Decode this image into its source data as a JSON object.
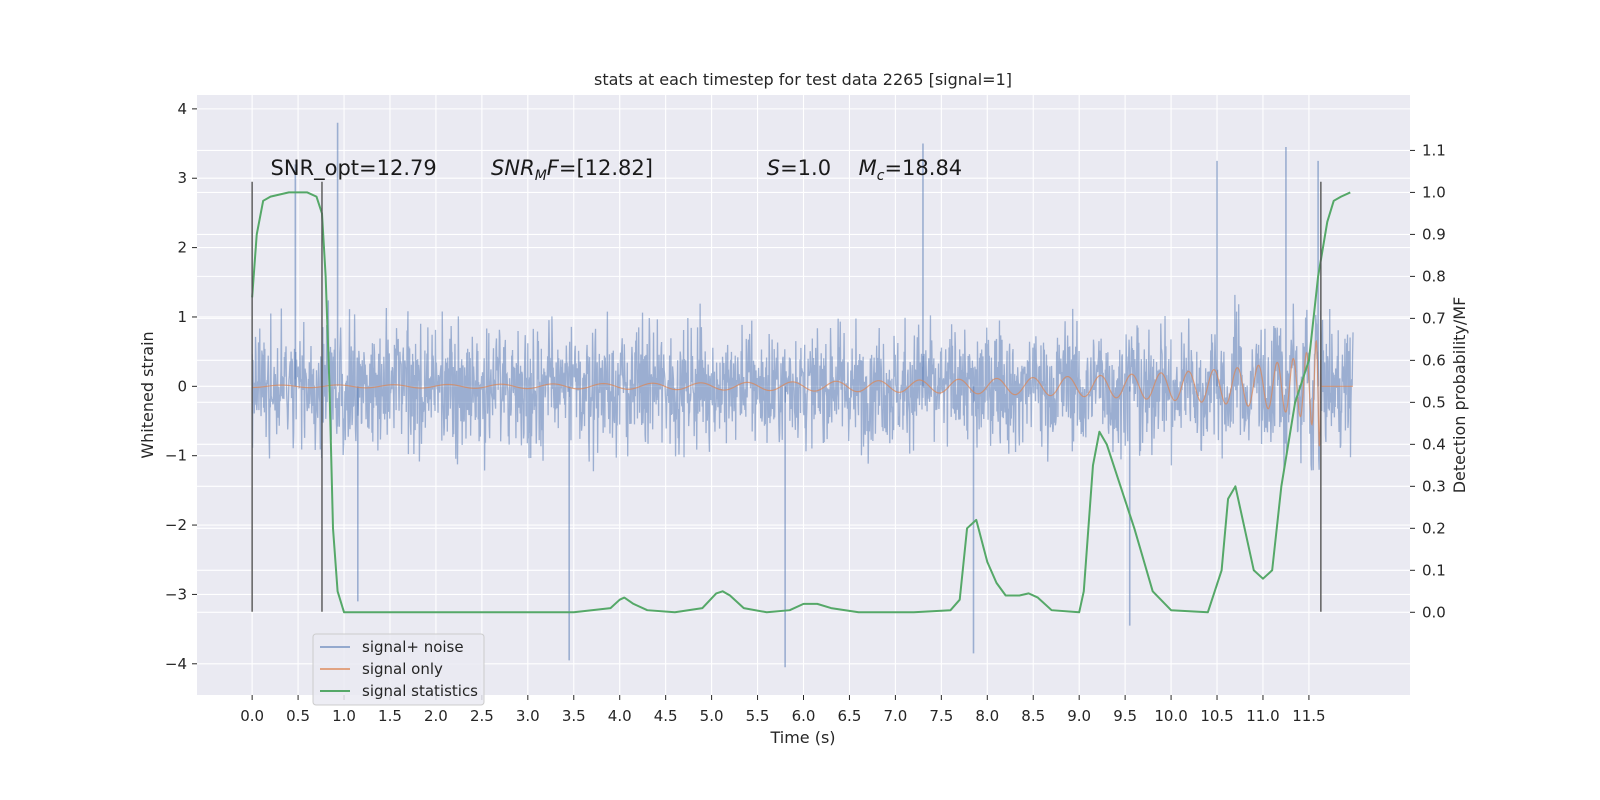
{
  "chart_data": {
    "type": "line",
    "title": "stats at each timestep for test data 2265 [signal=1]",
    "xlabel": "Time (s)",
    "ylabel": "Whitened strain",
    "y2label": "Detection probability/MF",
    "xlim": [
      -0.6,
      12.6
    ],
    "ylim": [
      -4.45,
      4.2
    ],
    "y2lim": [
      -0.197,
      1.232
    ],
    "xticks": [
      0.0,
      0.5,
      1.0,
      1.5,
      2.0,
      2.5,
      3.0,
      3.5,
      4.0,
      4.5,
      5.0,
      5.5,
      6.0,
      6.5,
      7.0,
      7.5,
      8.0,
      8.5,
      9.0,
      9.5,
      10.0,
      10.5,
      11.0,
      11.5
    ],
    "xtick_labels": [
      "0.0",
      "0.5",
      "1.0",
      "1.5",
      "2.0",
      "2.5",
      "3.0",
      "3.5",
      "4.0",
      "4.5",
      "5.0",
      "5.5",
      "6.0",
      "6.5",
      "7.0",
      "7.5",
      "8.0",
      "8.5",
      "9.0",
      "9.5",
      "10.0",
      "10.5",
      "11.0",
      "11.5"
    ],
    "yticks": [
      -4,
      -3,
      -2,
      -1,
      0,
      1,
      2,
      3,
      4
    ],
    "ytick_labels": [
      "−4",
      "−3",
      "−2",
      "−1",
      "0",
      "1",
      "2",
      "3",
      "4"
    ],
    "y2ticks": [
      0.0,
      0.1,
      0.2,
      0.3,
      0.4,
      0.5,
      0.6,
      0.7,
      0.8,
      0.9,
      1.0,
      1.1
    ],
    "y2tick_labels": [
      "0.0",
      "0.1",
      "0.2",
      "0.3",
      "0.4",
      "0.5",
      "0.6",
      "0.7",
      "0.8",
      "0.9",
      "1.0",
      "1.1"
    ],
    "grid": true,
    "legend_position": "lower-left",
    "annotations": [
      {
        "text": "SNR_opt=12.79",
        "x": 0.2,
        "y": 3.05
      },
      {
        "text": "SNR_M F=[12.82]",
        "x": 2.6,
        "y": 3.05
      },
      {
        "text": "S=1.0",
        "x": 5.6,
        "y": 3.05
      },
      {
        "text": "M_c=18.84",
        "x": 6.6,
        "y": 3.05
      }
    ],
    "vlines": [
      {
        "x": 0.0,
        "y": [
          -3.25,
          2.95
        ]
      },
      {
        "x": 0.76,
        "y": [
          -3.25,
          2.95
        ]
      },
      {
        "x": 11.63,
        "y": [
          -3.25,
          2.95
        ]
      }
    ],
    "series": [
      {
        "name": "signal+ noise",
        "axis": "left",
        "color": "#4c72b0",
        "opacity": 0.5,
        "t_range": [
          0.0,
          11.98
        ],
        "envelope_typical": 1.75,
        "peaks": [
          {
            "x": 0.47,
            "y": 3.2
          },
          {
            "x": 0.93,
            "y": 3.8
          },
          {
            "x": 1.15,
            "y": -3.1
          },
          {
            "x": 3.45,
            "y": -3.95
          },
          {
            "x": 5.8,
            "y": -4.05
          },
          {
            "x": 7.3,
            "y": 3.5
          },
          {
            "x": 7.85,
            "y": -3.85
          },
          {
            "x": 9.55,
            "y": -3.45
          },
          {
            "x": 10.5,
            "y": 3.25
          },
          {
            "x": 11.25,
            "y": 3.45
          },
          {
            "x": 11.6,
            "y": 3.25
          }
        ]
      },
      {
        "name": "signal only",
        "axis": "left",
        "color": "#dd8452",
        "chirp_end": 11.63,
        "peak_amplitude": 2.5
      },
      {
        "name": "signal statistics",
        "axis": "right",
        "color": "#55a868",
        "x": [
          0.0,
          0.05,
          0.12,
          0.2,
          0.4,
          0.6,
          0.7,
          0.76,
          0.8,
          0.84,
          0.88,
          0.93,
          1.0,
          1.5,
          2.5,
          3.5,
          3.9,
          4.0,
          4.05,
          4.15,
          4.3,
          4.6,
          4.9,
          5.05,
          5.12,
          5.2,
          5.35,
          5.6,
          5.85,
          6.0,
          6.15,
          6.3,
          6.6,
          7.2,
          7.6,
          7.7,
          7.78,
          7.88,
          8.0,
          8.1,
          8.2,
          8.35,
          8.45,
          8.55,
          8.7,
          9.0,
          9.05,
          9.15,
          9.22,
          9.3,
          9.45,
          9.6,
          9.8,
          10.0,
          10.4,
          10.55,
          10.62,
          10.7,
          10.8,
          10.9,
          11.0,
          11.1,
          11.2,
          11.35,
          11.5,
          11.6,
          11.7,
          11.77,
          11.85,
          11.95
        ],
        "values": [
          0.75,
          0.9,
          0.98,
          0.99,
          1.0,
          1.0,
          0.99,
          0.95,
          0.8,
          0.55,
          0.2,
          0.05,
          0.0,
          0.0,
          0.0,
          0.0,
          0.01,
          0.03,
          0.035,
          0.02,
          0.005,
          0.0,
          0.01,
          0.045,
          0.05,
          0.04,
          0.01,
          0.0,
          0.005,
          0.02,
          0.02,
          0.01,
          0.0,
          0.0,
          0.005,
          0.03,
          0.2,
          0.22,
          0.12,
          0.07,
          0.04,
          0.04,
          0.045,
          0.035,
          0.005,
          0.0,
          0.05,
          0.35,
          0.43,
          0.4,
          0.3,
          0.2,
          0.05,
          0.005,
          0.0,
          0.1,
          0.27,
          0.3,
          0.2,
          0.1,
          0.08,
          0.1,
          0.3,
          0.5,
          0.6,
          0.8,
          0.93,
          0.98,
          0.99,
          1.0
        ]
      }
    ]
  }
}
